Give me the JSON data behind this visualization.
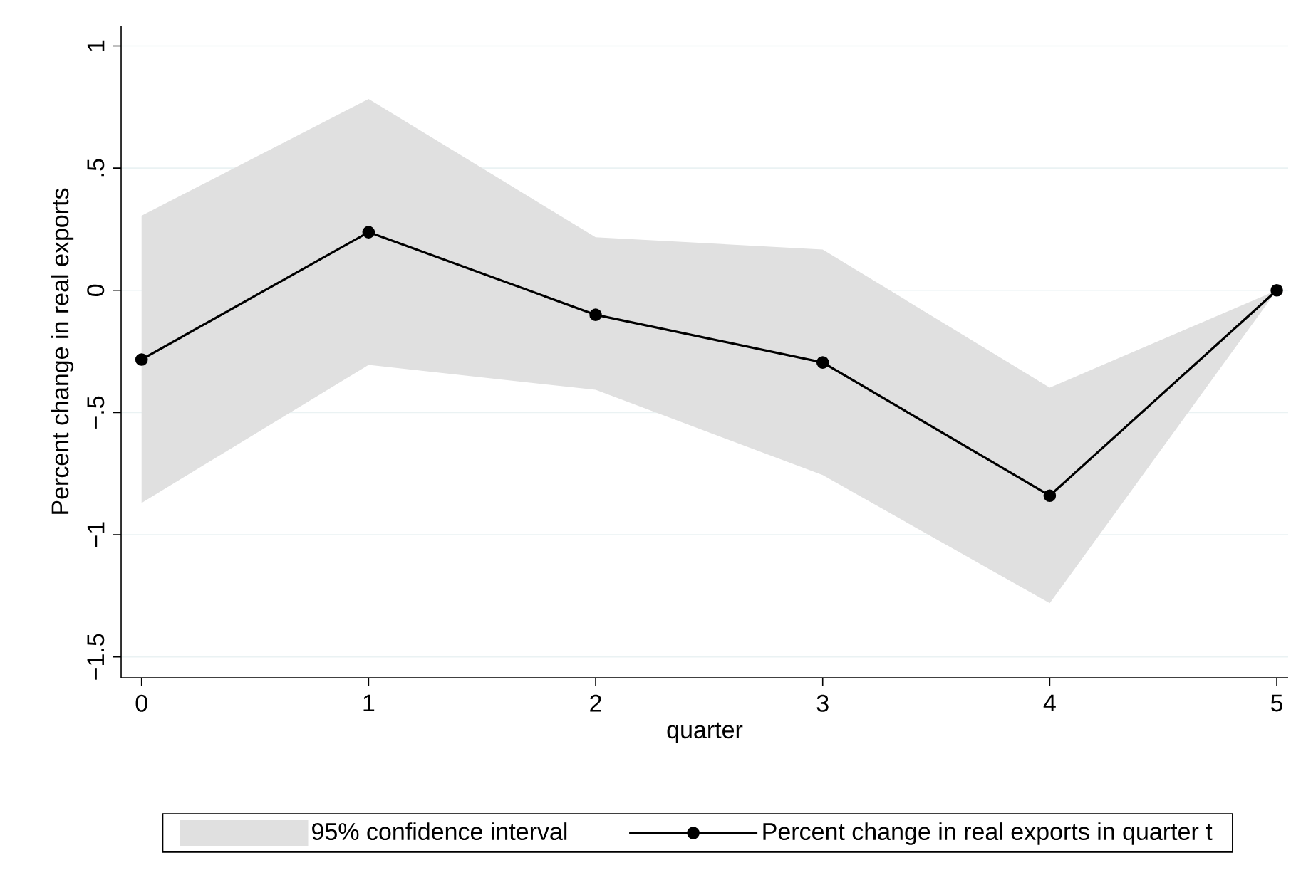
{
  "chart_data": {
    "type": "line",
    "xlabel": "quarter",
    "ylabel": "Percent change in real exports",
    "x": [
      0,
      1,
      2,
      3,
      4,
      5
    ],
    "series": [
      {
        "name": "Percent change in real exports in quarter t",
        "color": "#000000",
        "values": [
          -0.283,
          0.238,
          -0.1,
          -0.295,
          -0.84,
          0
        ],
        "lower": [
          -0.87,
          -0.305,
          -0.407,
          -0.756,
          -1.28,
          0
        ],
        "upper": [
          0.305,
          0.783,
          0.217,
          0.167,
          -0.398,
          0
        ]
      }
    ],
    "annotations": [
      "95% confidence interval"
    ],
    "xlim": [
      -0.09,
      5.05
    ],
    "ylim": [
      -1.585,
      1.083
    ],
    "xticks": [
      0,
      1,
      2,
      3,
      4,
      5
    ],
    "yticks": [
      {
        "value": -1.5,
        "label": "−1.5"
      },
      {
        "value": -1,
        "label": "−1"
      },
      {
        "value": -0.5,
        "label": "−.5"
      },
      0,
      {
        "value": 0.5,
        "label": ".5"
      },
      1
    ],
    "grid": "y",
    "legend": "bottom",
    "marker": "circle",
    "line_style": "solid"
  }
}
